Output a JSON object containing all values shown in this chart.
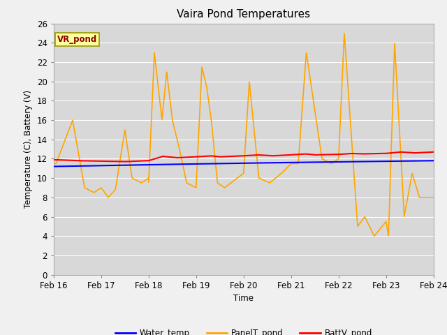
{
  "title": "Vaira Pond Temperatures",
  "ylabel": "Temperature (C), Battery (V)",
  "xlabel": "Time",
  "site_label": "VR_pond",
  "ylim": [
    0,
    26
  ],
  "yticks": [
    0,
    2,
    4,
    6,
    8,
    10,
    12,
    14,
    16,
    18,
    20,
    22,
    24,
    26
  ],
  "xlim_start": 0,
  "xlim_end": 8,
  "xtick_labels": [
    "Feb 16",
    "Feb 17",
    "Feb 18",
    "Feb 19",
    "Feb 20",
    "Feb 21",
    "Feb 22",
    "Feb 23",
    "Feb 24"
  ],
  "bg_color": "#d8d8d8",
  "fig_color": "#f0f0f0",
  "grid_color": "#ffffff",
  "water_temp_color": "#0000ff",
  "panel_temp_color": "#ffa500",
  "batt_color": "#ff0000",
  "site_label_fg": "#8b0000",
  "site_label_bg": "#ffffa0",
  "site_label_edge": "#999900",
  "legend_labels": [
    "Water_temp",
    "PanelT_pond",
    "BattV_pond"
  ]
}
